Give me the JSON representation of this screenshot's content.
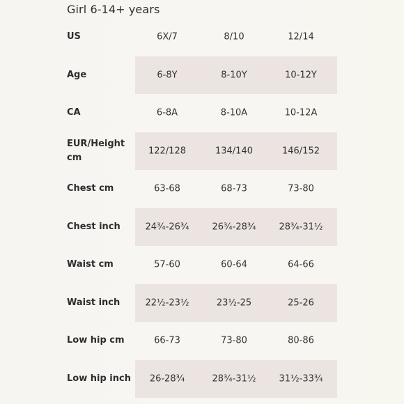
{
  "title": "Girl 6-14+ years",
  "header": {
    "label": "US",
    "cols": [
      "6X/7",
      "8/10",
      "12/14"
    ]
  },
  "rows": [
    {
      "label": "Age",
      "values": [
        "6-8Y",
        "8-10Y",
        "10-12Y"
      ]
    },
    {
      "label": "CA",
      "values": [
        "6-8A",
        "8-10A",
        "10-12A"
      ]
    },
    {
      "label": "EUR/Height cm",
      "values": [
        "122/128",
        "134/140",
        "146/152"
      ]
    },
    {
      "label": "Chest cm",
      "values": [
        "63-68",
        "68-73",
        "73-80"
      ]
    },
    {
      "label": "Chest inch",
      "values": [
        "24¾-26¾",
        "26¾-28¾",
        "28¾-31½"
      ]
    },
    {
      "label": "Waist cm",
      "values": [
        "57-60",
        "60-64",
        "64-66"
      ]
    },
    {
      "label": "Waist inch",
      "values": [
        "22½-23½",
        "23½-25",
        "25-26"
      ]
    },
    {
      "label": "Low hip cm",
      "values": [
        "66-73",
        "73-80",
        "80-86"
      ]
    },
    {
      "label": "Low hip inch",
      "values": [
        "26-28¾",
        "28¾-31½",
        "31½-33¾"
      ]
    }
  ],
  "colors": {
    "band": "#ece4e1",
    "text": "#2d2d2d",
    "background": "#f7f5f1"
  }
}
